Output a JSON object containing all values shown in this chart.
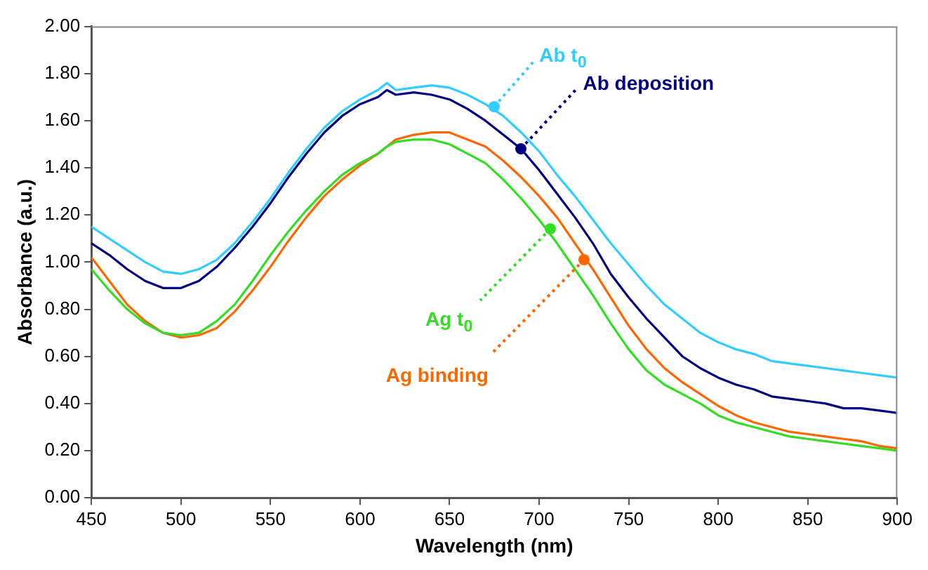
{
  "chart_data": {
    "type": "line",
    "xlabel": "Wavelength (nm)",
    "ylabel": "Absorbance (a.u.)",
    "x": [
      450,
      460,
      470,
      480,
      490,
      500,
      510,
      520,
      530,
      540,
      550,
      560,
      570,
      580,
      590,
      600,
      610,
      615,
      620,
      630,
      640,
      650,
      660,
      670,
      680,
      690,
      700,
      710,
      720,
      730,
      740,
      750,
      760,
      770,
      780,
      790,
      800,
      810,
      820,
      830,
      840,
      850,
      860,
      870,
      880,
      890,
      900
    ],
    "series": [
      {
        "color": "#33ccff",
        "values": [
          1.15,
          1.1,
          1.05,
          1.0,
          0.96,
          0.95,
          0.97,
          1.01,
          1.08,
          1.17,
          1.27,
          1.38,
          1.48,
          1.57,
          1.64,
          1.69,
          1.73,
          1.76,
          1.73,
          1.74,
          1.75,
          1.74,
          1.71,
          1.67,
          1.62,
          1.55,
          1.47,
          1.37,
          1.28,
          1.18,
          1.08,
          0.99,
          0.9,
          0.82,
          0.76,
          0.7,
          0.66,
          0.63,
          0.61,
          0.58,
          0.57,
          0.56,
          0.55,
          0.54,
          0.53,
          0.52,
          0.51
        ]
      },
      {
        "color": "#000080",
        "values": [
          1.08,
          1.03,
          0.97,
          0.92,
          0.89,
          0.89,
          0.92,
          0.98,
          1.06,
          1.15,
          1.25,
          1.36,
          1.46,
          1.55,
          1.62,
          1.67,
          1.7,
          1.73,
          1.71,
          1.72,
          1.71,
          1.69,
          1.65,
          1.6,
          1.54,
          1.48,
          1.39,
          1.29,
          1.19,
          1.08,
          0.95,
          0.85,
          0.76,
          0.68,
          0.6,
          0.55,
          0.51,
          0.48,
          0.46,
          0.43,
          0.42,
          0.41,
          0.4,
          0.38,
          0.38,
          0.37,
          0.36
        ]
      },
      {
        "color": "#33dd22",
        "values": [
          0.97,
          0.88,
          0.8,
          0.74,
          0.7,
          0.69,
          0.7,
          0.75,
          0.82,
          0.92,
          1.03,
          1.13,
          1.22,
          1.3,
          1.37,
          1.42,
          1.46,
          1.49,
          1.51,
          1.52,
          1.52,
          1.5,
          1.46,
          1.42,
          1.35,
          1.27,
          1.18,
          1.08,
          0.97,
          0.86,
          0.74,
          0.63,
          0.54,
          0.48,
          0.44,
          0.4,
          0.35,
          0.32,
          0.3,
          0.28,
          0.26,
          0.25,
          0.24,
          0.23,
          0.22,
          0.21,
          0.2
        ]
      },
      {
        "color": "#ff6600",
        "values": [
          1.02,
          0.92,
          0.82,
          0.75,
          0.7,
          0.68,
          0.69,
          0.72,
          0.79,
          0.88,
          0.98,
          1.09,
          1.19,
          1.28,
          1.35,
          1.41,
          1.46,
          1.49,
          1.52,
          1.54,
          1.55,
          1.55,
          1.52,
          1.49,
          1.43,
          1.36,
          1.28,
          1.19,
          1.08,
          0.97,
          0.85,
          0.73,
          0.63,
          0.55,
          0.49,
          0.44,
          0.39,
          0.35,
          0.32,
          0.3,
          0.28,
          0.27,
          0.26,
          0.25,
          0.24,
          0.22,
          0.21
        ]
      }
    ],
    "annotations": [
      {
        "text": "Ab t$_{0}$",
        "x": 675,
        "y": 1.66
      },
      {
        "text": "Ab deposition",
        "x": 690,
        "y": 1.48
      },
      {
        "text": "Ag t$_{0}$",
        "x": 706,
        "y": 1.14
      },
      {
        "text": "Ag binding",
        "x": 725,
        "y": 1.01
      }
    ],
    "xlim": [
      450,
      900
    ],
    "xticks": [
      450,
      500,
      550,
      600,
      650,
      700,
      750,
      800,
      850,
      900
    ],
    "ylim": [
      0,
      2
    ],
    "yticks": [
      {
        "value": 0,
        "label": "0.00"
      },
      {
        "value": 0.2,
        "label": "0.20"
      },
      {
        "value": 0.4,
        "label": "0.40"
      },
      {
        "value": 0.6,
        "label": "0.60"
      },
      {
        "value": 0.8,
        "label": "0.80"
      },
      {
        "value": 1,
        "label": "1.00"
      },
      {
        "value": 1.2,
        "label": "1.20"
      },
      {
        "value": 1.4,
        "label": "1.40"
      },
      {
        "value": 1.6,
        "label": "1.60"
      },
      {
        "value": 1.8,
        "label": "1.80"
      },
      {
        "value": 2,
        "label": "2.00"
      }
    ],
    "grid": false,
    "legend": false,
    "marker": "none",
    "line_style": "solid"
  }
}
